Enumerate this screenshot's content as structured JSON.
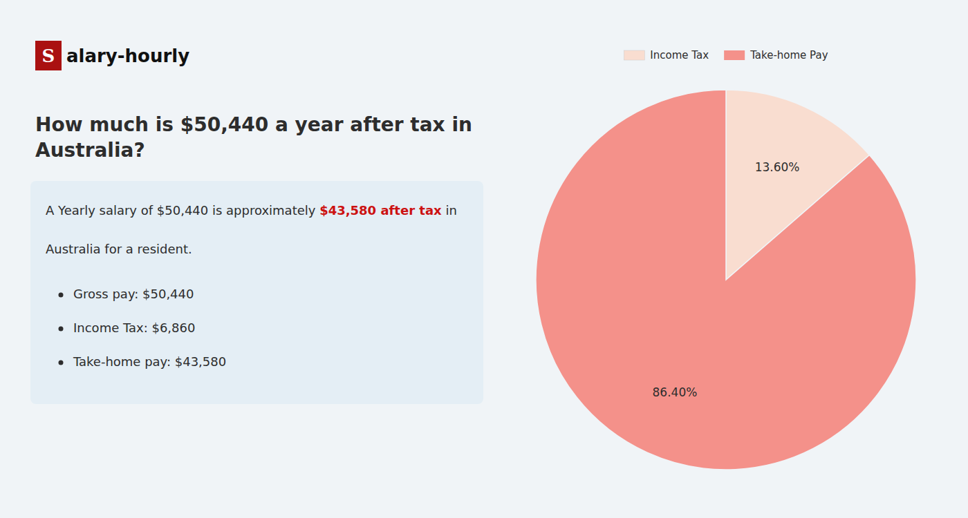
{
  "chart_data": {
    "type": "pie",
    "title": "How much is $50,440 a year after tax in\nAustralia?",
    "categories": [
      "Income Tax",
      "Take-home Pay"
    ],
    "values": [
      13.6,
      86.4
    ],
    "value_labels": [
      "13.60%",
      "86.40%"
    ],
    "colors": [
      "#f9ddd0",
      "#f4918a"
    ],
    "data_labels": true,
    "legend": "top",
    "annotations": [
      {
        "text": "S"
      },
      {
        "text": "alary-hourly"
      },
      {
        "text": "A Yearly salary of $50,440 is approximately "
      },
      {
        "text": "$43,580 after tax",
        "color": "#cc1111"
      },
      {
        "text": " in"
      },
      {
        "text": "Australia for a resident."
      },
      {
        "text": "Gross pay: $50,440"
      },
      {
        "text": "Income Tax: $6,860"
      },
      {
        "text": "Take-home pay: $43,580"
      }
    ]
  }
}
